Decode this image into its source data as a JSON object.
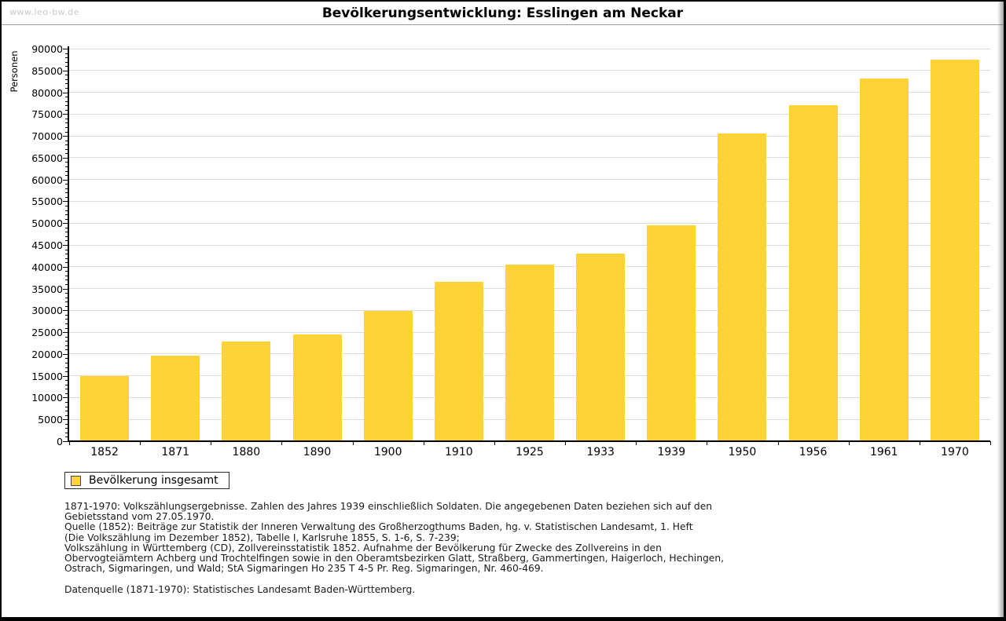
{
  "page": {
    "watermark": "www.leo-bw.de",
    "title": "Bevölkerungsentwicklung: Esslingen am Neckar"
  },
  "chart_data": {
    "type": "bar",
    "title": "Bevölkerungsentwicklung: Esslingen am Neckar",
    "xlabel": "",
    "ylabel": "Personen",
    "categories": [
      "1852",
      "1871",
      "1880",
      "1890",
      "1900",
      "1910",
      "1925",
      "1933",
      "1939",
      "1950",
      "1956",
      "1961",
      "1970"
    ],
    "series": [
      {
        "name": "Bevölkerung insgesamt",
        "values": [
          14900,
          19600,
          22900,
          24500,
          29900,
          36500,
          40500,
          43100,
          49500,
          70600,
          77100,
          83100,
          87500
        ]
      }
    ],
    "ylim": [
      0,
      90000
    ],
    "y_major_step": 5000,
    "y_minor_step": 1000,
    "grid": true,
    "legend_position": "bottom-left",
    "bar_color": "#FDD335",
    "grid_color": "#DCDCDC"
  },
  "legend": {
    "label": "Bevölkerung insgesamt"
  },
  "notes": {
    "lines": [
      "1871-1970: Volkszählungsergebnisse. Zahlen des Jahres 1939 einschließlich Soldaten. Die angegebenen Daten beziehen sich auf den",
      "Gebietsstand vom 27.05.1970.",
      "Quelle (1852): Beiträge zur Statistik der Inneren Verwaltung des Großherzogthums Baden, hg. v. Statistischen Landesamt, 1. Heft",
      "(Die Volkszählung im Dezember 1852), Tabelle I, Karlsruhe 1855, S. 1-6, S. 7-239;",
      "Volkszählung in Württemberg (CD), Zollvereinsstatistik 1852. Aufnahme der Bevölkerung für Zwecke des Zollvereins in den",
      "Obervogteiämtern Achberg und Trochtelfingen sowie in den Oberamtsbezirken Glatt, Straßberg, Gammertingen, Haigerloch, Hechingen,",
      "Ostrach, Sigmaringen, und Wald; StA Sigmaringen Ho 235 T 4-5 Pr. Reg. Sigmaringen, Nr. 460-469.",
      "",
      "Datenquelle (1871-1970): Statistisches Landesamt Baden-Württemberg."
    ]
  }
}
